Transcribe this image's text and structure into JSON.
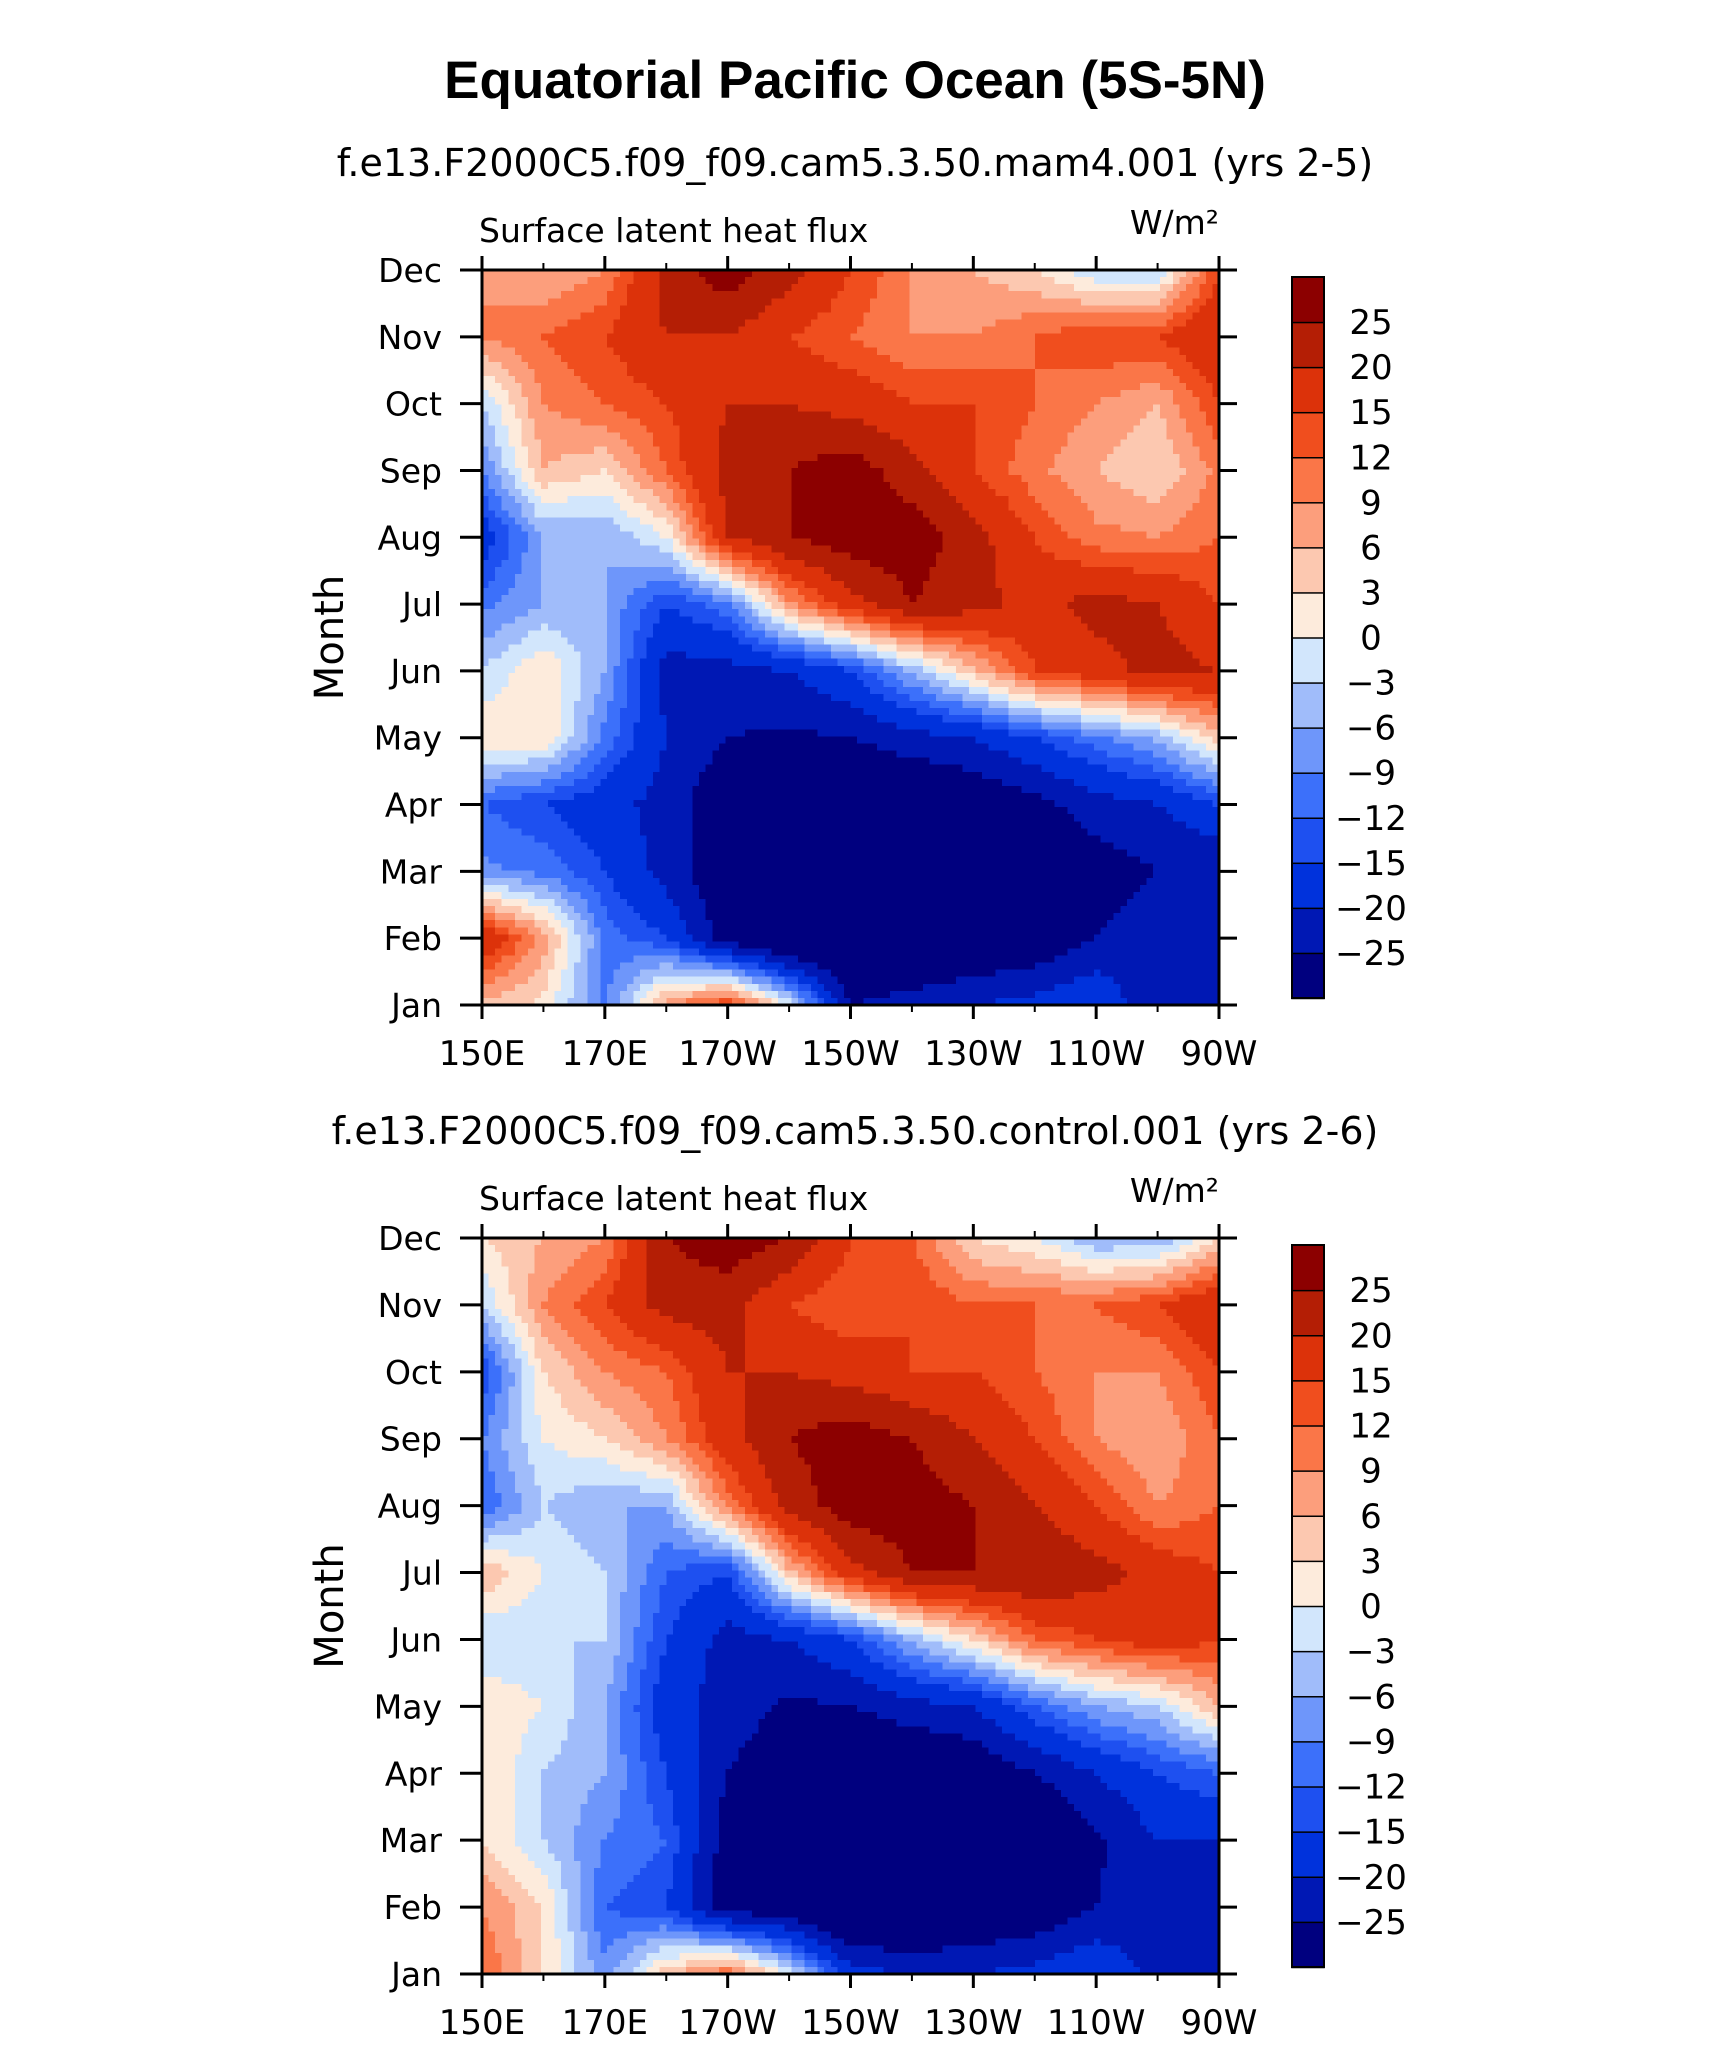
{
  "figure": {
    "title": "Equatorial Pacific Ocean (5S-5N)"
  },
  "palette": [
    "#00007f",
    "#0018b4",
    "#0032dc",
    "#1e50f0",
    "#3c70fa",
    "#6e96fa",
    "#a0bcfa",
    "#d2e6fc",
    "#fdebdc",
    "#fcc8b0",
    "#fc9e7c",
    "#fa7648",
    "#f04e1e",
    "#dc320a",
    "#b41e05",
    "#8c0000"
  ],
  "chart_data": [
    {
      "type": "heatmap",
      "subtitle": "f.e13.F2000C5.f09_f09.cam5.3.50.mam4.001 (yrs 2-5)",
      "left_label": "Surface latent heat flux",
      "units": "W/m²",
      "ylabel": "Month",
      "x_ticks": [
        "150E",
        "170E",
        "170W",
        "150W",
        "130W",
        "110W",
        "90W"
      ],
      "y_ticks": [
        "Jan",
        "Feb",
        "Mar",
        "Apr",
        "May",
        "Jun",
        "Jul",
        "Aug",
        "Sep",
        "Oct",
        "Nov",
        "Dec"
      ],
      "xlim": [
        150,
        270
      ],
      "levels": [
        "25",
        "20",
        "15",
        "12",
        "9",
        "6",
        "3",
        "0",
        "−3",
        "−6",
        "−9",
        "−12",
        "−15",
        "−20",
        "−25"
      ],
      "level_values": [
        -25,
        -20,
        -15,
        -12,
        -9,
        -6,
        -3,
        0,
        3,
        6,
        9,
        12,
        15,
        20,
        25
      ],
      "grid_x": [
        150,
        160,
        170,
        180,
        190,
        200,
        210,
        220,
        230,
        240,
        250,
        260,
        270
      ],
      "grid_y": [
        "Jan",
        "Feb",
        "Mar",
        "Apr",
        "May",
        "Jun",
        "Jul",
        "Aug",
        "Sep",
        "Oct",
        "Nov",
        "Dec"
      ],
      "values": [
        [
          5,
          2,
          -10,
          8,
          15,
          0,
          -25,
          -22,
          -20,
          -18,
          -15,
          -25,
          -25
        ],
        [
          20,
          8,
          -10,
          -15,
          -28,
          -35,
          -35,
          -35,
          -32,
          -30,
          -25,
          -22,
          -22
        ],
        [
          -8,
          -10,
          -15,
          -22,
          -30,
          -35,
          -35,
          -35,
          -35,
          -33,
          -28,
          -25,
          -25
        ],
        [
          -12,
          -15,
          -18,
          -22,
          -30,
          -30,
          -32,
          -32,
          -30,
          -27,
          -22,
          -20,
          -15
        ],
        [
          3,
          3,
          -10,
          -20,
          -25,
          -26,
          -25,
          -22,
          -20,
          -15,
          -10,
          -5,
          5
        ],
        [
          -3,
          3,
          -6,
          -22,
          -22,
          -20,
          -15,
          -5,
          5,
          15,
          18,
          22,
          20
        ],
        [
          -10,
          -6,
          -6,
          -15,
          -10,
          8,
          18,
          25,
          22,
          18,
          22,
          20,
          15
        ],
        [
          -18,
          -6,
          -6,
          0,
          20,
          25,
          28,
          28,
          22,
          15,
          10,
          9,
          12
        ],
        [
          -9,
          6,
          3,
          12,
          22,
          25,
          28,
          22,
          15,
          10,
          6,
          3,
          10
        ],
        [
          -3,
          9,
          12,
          15,
          20,
          20,
          18,
          15,
          15,
          12,
          9,
          6,
          15
        ],
        [
          9,
          12,
          15,
          20,
          20,
          15,
          12,
          9,
          9,
          12,
          15,
          15,
          20
        ],
        [
          9,
          6,
          9,
          22,
          28,
          22,
          15,
          9,
          6,
          3,
          -3,
          -3,
          15
        ]
      ]
    },
    {
      "type": "heatmap",
      "subtitle": "f.e13.F2000C5.f09_f09.cam5.3.50.control.001 (yrs 2-6)",
      "left_label": "Surface latent heat flux",
      "units": "W/m²",
      "ylabel": "Month",
      "x_ticks": [
        "150E",
        "170E",
        "170W",
        "150W",
        "130W",
        "110W",
        "90W"
      ],
      "y_ticks": [
        "Jan",
        "Feb",
        "Mar",
        "Apr",
        "May",
        "Jun",
        "Jul",
        "Aug",
        "Sep",
        "Oct",
        "Nov",
        "Dec"
      ],
      "xlim": [
        150,
        270
      ],
      "levels": [
        "25",
        "20",
        "15",
        "12",
        "9",
        "6",
        "3",
        "0",
        "−3",
        "−6",
        "−9",
        "−12",
        "−15",
        "−20",
        "−25"
      ],
      "level_values": [
        -25,
        -20,
        -15,
        -12,
        -9,
        -6,
        -3,
        0,
        3,
        6,
        9,
        12,
        15,
        20,
        25
      ],
      "grid_x": [
        150,
        160,
        170,
        180,
        190,
        200,
        210,
        220,
        230,
        240,
        250,
        260,
        270
      ],
      "grid_y": [
        "Jan",
        "Feb",
        "Mar",
        "Apr",
        "May",
        "Jun",
        "Jul",
        "Aug",
        "Sep",
        "Oct",
        "Nov",
        "Dec"
      ],
      "values": [
        [
          12,
          3,
          -8,
          5,
          12,
          0,
          -18,
          -20,
          -20,
          -18,
          -15,
          -22,
          -25
        ],
        [
          9,
          3,
          -12,
          -15,
          -28,
          -30,
          -35,
          -35,
          -32,
          -30,
          -25,
          -22,
          -22
        ],
        [
          3,
          -3,
          -9,
          -12,
          -28,
          -35,
          -35,
          -35,
          -35,
          -33,
          -26,
          -20,
          -20
        ],
        [
          3,
          -3,
          -6,
          -15,
          -25,
          -30,
          -32,
          -32,
          -30,
          -25,
          -20,
          -15,
          -12
        ],
        [
          3,
          0,
          -6,
          -18,
          -22,
          -26,
          -25,
          -22,
          -20,
          -12,
          -6,
          -3,
          6
        ],
        [
          -3,
          -3,
          -3,
          -15,
          -22,
          -20,
          -15,
          -5,
          3,
          12,
          15,
          18,
          15
        ],
        [
          6,
          0,
          -3,
          -12,
          -15,
          5,
          18,
          25,
          25,
          25,
          22,
          18,
          15
        ],
        [
          -12,
          -3,
          -6,
          -6,
          10,
          22,
          28,
          28,
          25,
          20,
          15,
          9,
          12
        ],
        [
          -9,
          0,
          3,
          9,
          18,
          25,
          28,
          25,
          20,
          15,
          9,
          6,
          12
        ],
        [
          -15,
          3,
          9,
          12,
          20,
          20,
          18,
          15,
          15,
          12,
          9,
          9,
          15
        ],
        [
          -3,
          9,
          15,
          22,
          22,
          15,
          12,
          15,
          12,
          12,
          12,
          15,
          20
        ],
        [
          3,
          6,
          9,
          25,
          28,
          25,
          15,
          12,
          3,
          0,
          -6,
          -6,
          3
        ]
      ]
    }
  ]
}
